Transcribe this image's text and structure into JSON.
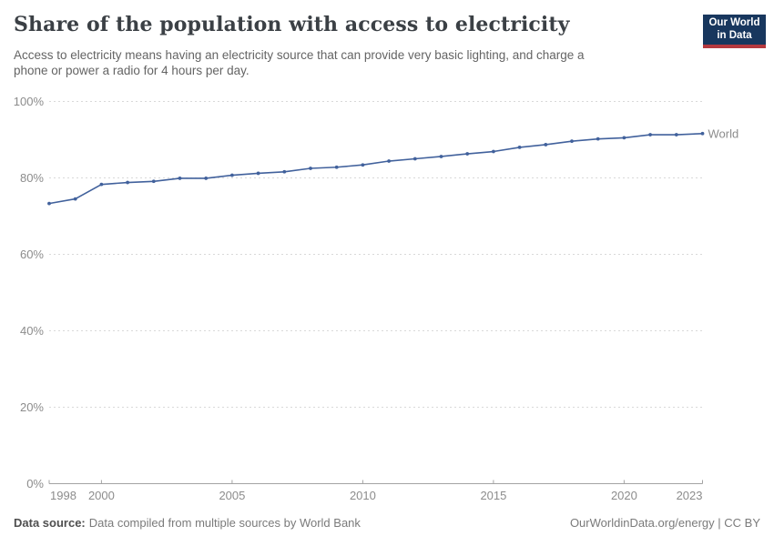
{
  "header": {
    "title": "Share of the population with access to electricity",
    "subtitle_lines": [
      "Access to electricity means having an electricity source that can provide very basic lighting, and charge a",
      "phone or power a radio for 4 hours per day."
    ]
  },
  "logo": {
    "line1": "Our World",
    "line2": "in Data",
    "bg_color": "#18375e",
    "stripe_color": "#b5393f"
  },
  "footer": {
    "source_label": "Data source:",
    "source_text": "Data compiled from multiple sources by World Bank",
    "link_text": "OurWorldinData.org/energy | CC BY"
  },
  "chart_data": {
    "type": "line",
    "title": "Share of the population with access to electricity",
    "unit": "%",
    "xlim": [
      1998,
      2023
    ],
    "ylim": [
      0,
      100
    ],
    "xticks": [
      1998,
      2000,
      2005,
      2010,
      2015,
      2020,
      2023
    ],
    "yticks": [
      0,
      20,
      40,
      60,
      80,
      100
    ],
    "ytick_suffix": "%",
    "grid": "horizontal-dashed",
    "colors": {
      "grid": "#d9d9d9",
      "axis": "#a3a3a3",
      "tick_text": "#8c8c8c"
    },
    "series": [
      {
        "name": "World",
        "color": "#41619c",
        "x": [
          1998,
          1999,
          2000,
          2001,
          2002,
          2003,
          2004,
          2005,
          2006,
          2007,
          2008,
          2009,
          2010,
          2011,
          2012,
          2013,
          2014,
          2015,
          2016,
          2017,
          2018,
          2019,
          2020,
          2021,
          2022,
          2023
        ],
        "y": [
          73.3,
          74.5,
          78.3,
          78.8,
          79.1,
          79.9,
          79.9,
          80.7,
          81.2,
          81.6,
          82.5,
          82.8,
          83.4,
          84.4,
          85.0,
          85.6,
          86.3,
          86.9,
          88.0,
          88.7,
          89.6,
          90.2,
          90.5,
          91.3,
          91.3,
          91.6
        ]
      }
    ]
  }
}
